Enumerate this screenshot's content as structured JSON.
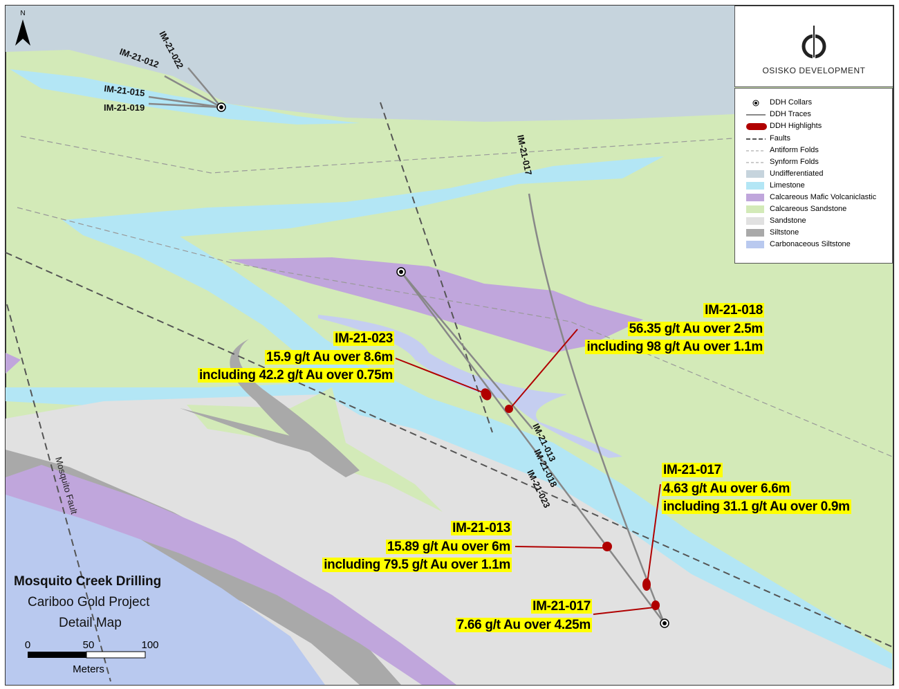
{
  "north_arrow": "N",
  "company": "OSISKO DEVELOPMENT",
  "legend": [
    "DDH Collars",
    "DDH Traces",
    "DDH Highlights",
    "Faults",
    "Antiform Folds",
    "Synform Folds",
    "Undifferentiated",
    "Limestone",
    "Calcareous Mafic Volcaniclastic",
    "Calcareous Sandstone",
    "Sandstone",
    "Siltstone",
    "Carbonaceous Siltstone"
  ],
  "drill_holes": [
    "IM-21-022",
    "IM-21-012",
    "IM-21-015",
    "IM-21-019",
    "IM-21-017",
    "IM-21-013",
    "IM-21-018",
    "IM-21-023"
  ],
  "fault_label": "Mosquito Fault",
  "callouts": [
    {
      "hole": "IM-21-023",
      "lines": [
        "15.9 g/t Au over 8.6m",
        "including 42.2 g/t Au over 0.75m"
      ]
    },
    {
      "hole": "IM-21-018",
      "lines": [
        "56.35 g/t Au over 2.5m",
        "including 98 g/t Au over 1.1m"
      ]
    },
    {
      "hole": "IM-21-017",
      "lines": [
        "4.63 g/t Au over 6.6m",
        "including 31.1 g/t Au over 0.9m"
      ]
    },
    {
      "hole": "IM-21-013",
      "lines": [
        "15.89 g/t Au over 6m",
        "including 79.5 g/t Au over 1.1m"
      ]
    },
    {
      "hole": "IM-21-017",
      "lines": [
        "7.66 g/t Au over 4.25m"
      ]
    }
  ],
  "title_block": {
    "title": "Mosquito Creek Drilling",
    "project": "Cariboo Gold Project",
    "subtitle": "Detail Map"
  },
  "scale_bar": {
    "ticks": [
      0,
      50,
      100
    ],
    "unit": "Meters"
  }
}
